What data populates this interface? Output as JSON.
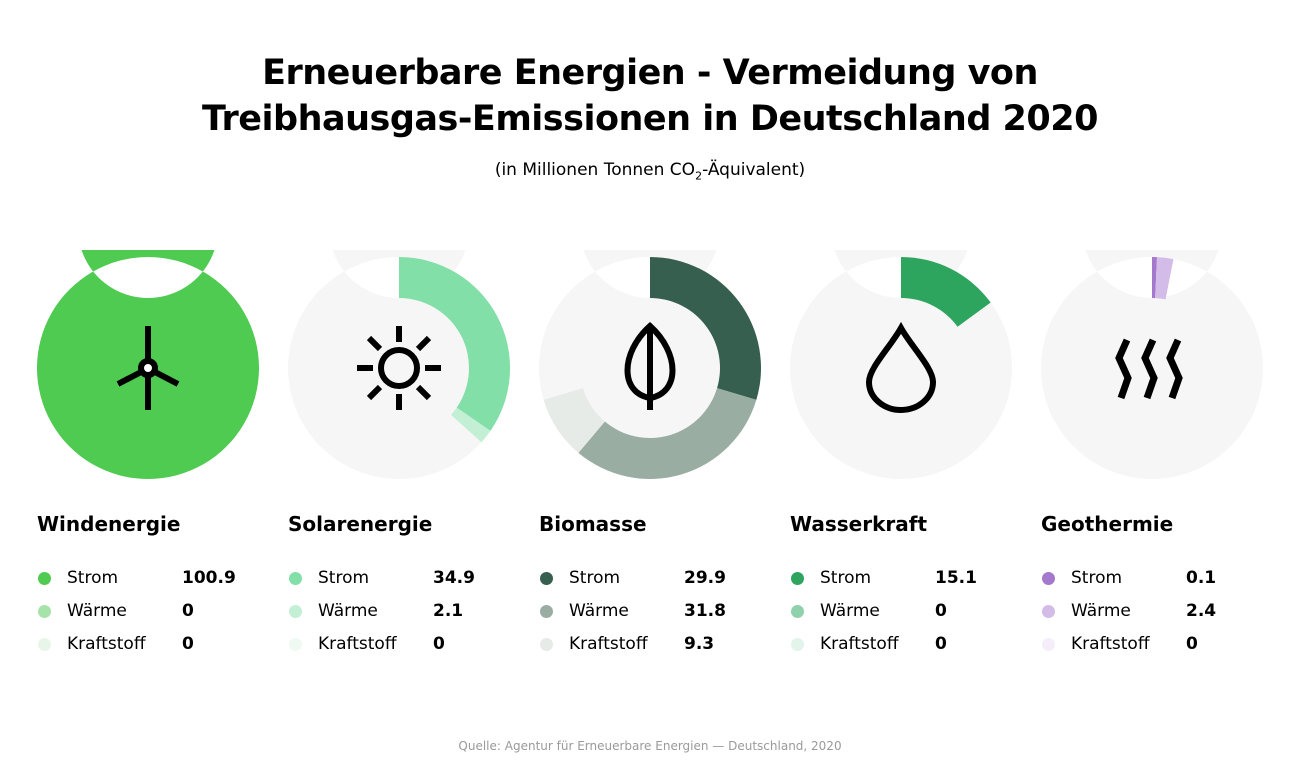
{
  "title_line1": "Erneuerbare Energien - Vermeidung von",
  "title_line2": "Treibhausgas-Emissionen in Deutschland 2020",
  "subtitle_pre": "(in Millionen Tonnen CO",
  "subtitle_sub": "2",
  "subtitle_post": "-Äquivalent)",
  "source": "Quelle: Agentur für Erneuerbare Energien — Deutschland, 2020",
  "chart_data": {
    "type": "pie",
    "variant": "donut",
    "full_circle_value": 100.9,
    "track_color": "#f6f6f6",
    "categories": [
      "Strom",
      "Wärme",
      "Kraftstoff"
    ],
    "charts": [
      {
        "name": "Windenergie",
        "icon": "wind-turbine-icon",
        "values": [
          100.9,
          0,
          0
        ],
        "colors": [
          "#4ecb50",
          "#a6e3a8",
          "#e8f6e9"
        ]
      },
      {
        "name": "Solarenergie",
        "icon": "sun-icon",
        "values": [
          34.9,
          2.1,
          0
        ],
        "colors": [
          "#82dfa8",
          "#c3efd4",
          "#eefaf2"
        ]
      },
      {
        "name": "Biomasse",
        "icon": "leaf-icon",
        "values": [
          29.9,
          31.8,
          9.3
        ],
        "colors": [
          "#365f4f",
          "#9aada3",
          "#e6ebe8"
        ]
      },
      {
        "name": "Wasserkraft",
        "icon": "water-drop-icon",
        "values": [
          15.1,
          0,
          0
        ],
        "colors": [
          "#2da55e",
          "#8fd1aa",
          "#e3f4ea"
        ]
      },
      {
        "name": "Geothermie",
        "icon": "heat-waves-icon",
        "values": [
          0.1,
          2.4,
          0
        ],
        "colors": [
          "#a478cc",
          "#d4bce8",
          "#f5eefa"
        ]
      }
    ]
  }
}
